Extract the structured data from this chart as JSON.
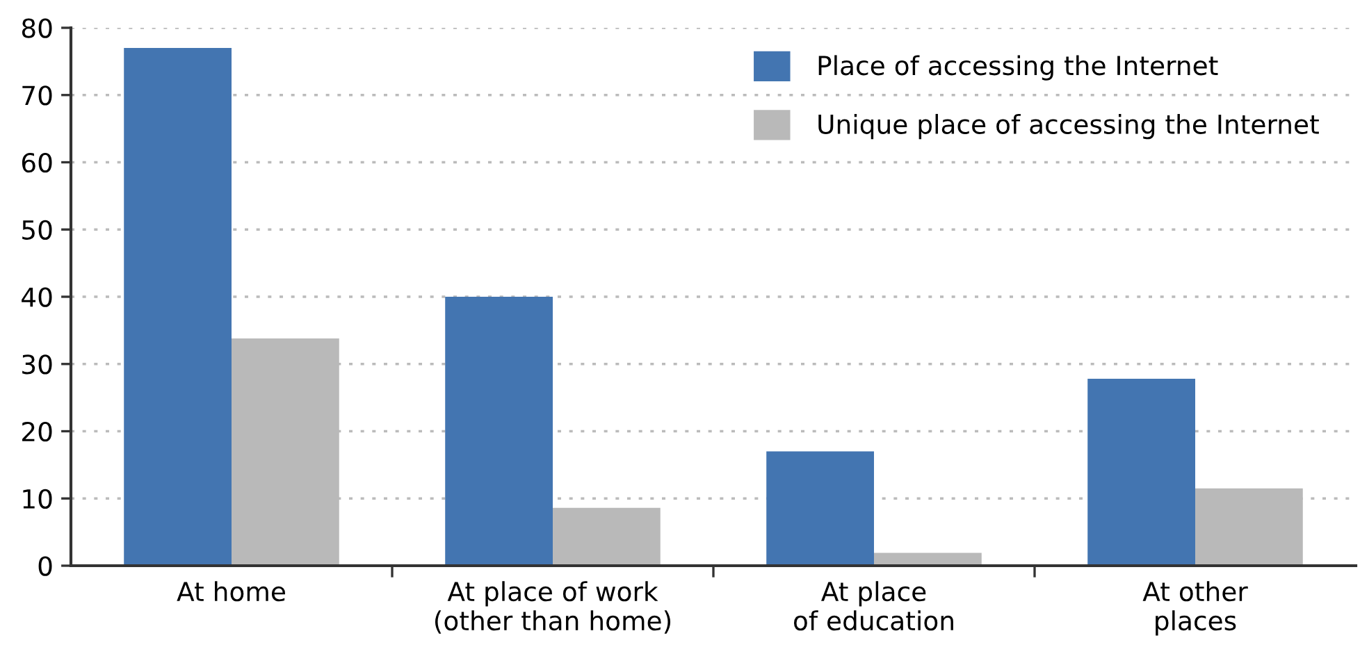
{
  "chart_data": {
    "type": "bar",
    "categories": [
      "At home",
      "At place of work\n(other than home)",
      "At place\nof education",
      "At other\nplaces"
    ],
    "series": [
      {
        "name": "Place of accessing the Internet",
        "color": "#4375b1",
        "values": [
          77,
          40,
          17,
          27.8
        ]
      },
      {
        "name": "Unique place of accessing the Internet",
        "color": "#b9b9b9",
        "values": [
          33.8,
          8.6,
          1.9,
          11.5
        ]
      }
    ],
    "ylim": [
      0,
      80
    ],
    "yticks": [
      0,
      10,
      20,
      30,
      40,
      50,
      60,
      70,
      80
    ],
    "grid": "y",
    "legend": "top right"
  }
}
